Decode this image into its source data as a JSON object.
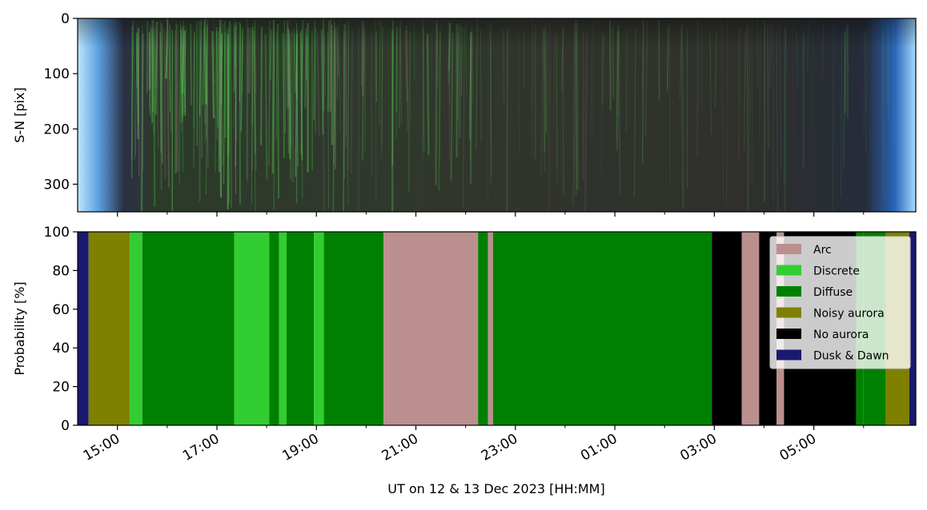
{
  "chart_data": [
    {
      "type": "heatmap",
      "panel": "keogram",
      "ylabel": "S-N [pix]",
      "ylim": [
        350,
        0
      ],
      "yticks": [
        0,
        100,
        200,
        300
      ],
      "ytick_labels": [
        "0",
        "100",
        "200",
        "300"
      ]
    },
    {
      "type": "area",
      "stacked": true,
      "panel": "probability",
      "ylabel": "Probability [%]",
      "xlabel": "UT on 12 & 13 Dec 2023 [HH:MM]",
      "ylim": [
        0,
        100
      ],
      "yticks": [
        0,
        20,
        40,
        60,
        80,
        100
      ],
      "ytick_labels": [
        "0",
        "20",
        "40",
        "60",
        "80",
        "100"
      ],
      "x_unit": "hours UT from 00:00 on 12 Dec 2023",
      "xlim": [
        14.2,
        31.05
      ],
      "xticks": [
        15,
        17,
        19,
        21,
        23,
        25,
        27,
        29
      ],
      "xtick_labels": [
        "15:00",
        "17:00",
        "19:00",
        "21:00",
        "23:00",
        "01:00",
        "03:00",
        "05:00"
      ],
      "minor_xticks": [
        16,
        18,
        20,
        22,
        24,
        26,
        28,
        30
      ],
      "legend_position": "upper-right",
      "legend": [
        {
          "label": "Arc",
          "color": "#bc8f8f"
        },
        {
          "label": "Discrete",
          "color": "#32cd32"
        },
        {
          "label": "Diffuse",
          "color": "#008000"
        },
        {
          "label": "Noisy aurora",
          "color": "#808000"
        },
        {
          "label": "No aurora",
          "color": "#000000"
        },
        {
          "label": "Dusk & Dawn",
          "color": "#191970"
        }
      ],
      "segments": [
        {
          "start": 14.2,
          "end": 14.42,
          "class": "Dusk & Dawn"
        },
        {
          "start": 14.42,
          "end": 15.25,
          "class": "Noisy aurora"
        },
        {
          "start": 15.25,
          "end": 15.5,
          "class": "Discrete"
        },
        {
          "start": 15.5,
          "end": 17.35,
          "class": "Diffuse"
        },
        {
          "start": 17.35,
          "end": 18.05,
          "class": "Discrete"
        },
        {
          "start": 18.05,
          "end": 18.25,
          "class": "Diffuse"
        },
        {
          "start": 18.25,
          "end": 18.4,
          "class": "Discrete"
        },
        {
          "start": 18.4,
          "end": 18.95,
          "class": "Diffuse"
        },
        {
          "start": 18.95,
          "end": 19.15,
          "class": "Discrete"
        },
        {
          "start": 19.15,
          "end": 20.35,
          "class": "Diffuse"
        },
        {
          "start": 20.35,
          "end": 22.25,
          "class": "Arc"
        },
        {
          "start": 22.25,
          "end": 22.45,
          "class": "Diffuse"
        },
        {
          "start": 22.45,
          "end": 22.55,
          "class": "Arc"
        },
        {
          "start": 22.55,
          "end": 26.95,
          "class": "Diffuse"
        },
        {
          "start": 26.95,
          "end": 27.55,
          "class": "No aurora"
        },
        {
          "start": 27.55,
          "end": 27.9,
          "class": "Arc"
        },
        {
          "start": 27.9,
          "end": 28.25,
          "class": "No aurora"
        },
        {
          "start": 28.25,
          "end": 28.4,
          "class": "Arc"
        },
        {
          "start": 28.4,
          "end": 29.85,
          "class": "No aurora"
        },
        {
          "start": 29.85,
          "end": 30.0,
          "class": "Diffuse"
        },
        {
          "start": 30.0,
          "end": 30.45,
          "class": "Diffuse"
        },
        {
          "start": 30.45,
          "end": 30.92,
          "class": "Noisy aurora"
        },
        {
          "start": 30.92,
          "end": 31.05,
          "class": "Dusk & Dawn"
        }
      ]
    }
  ]
}
